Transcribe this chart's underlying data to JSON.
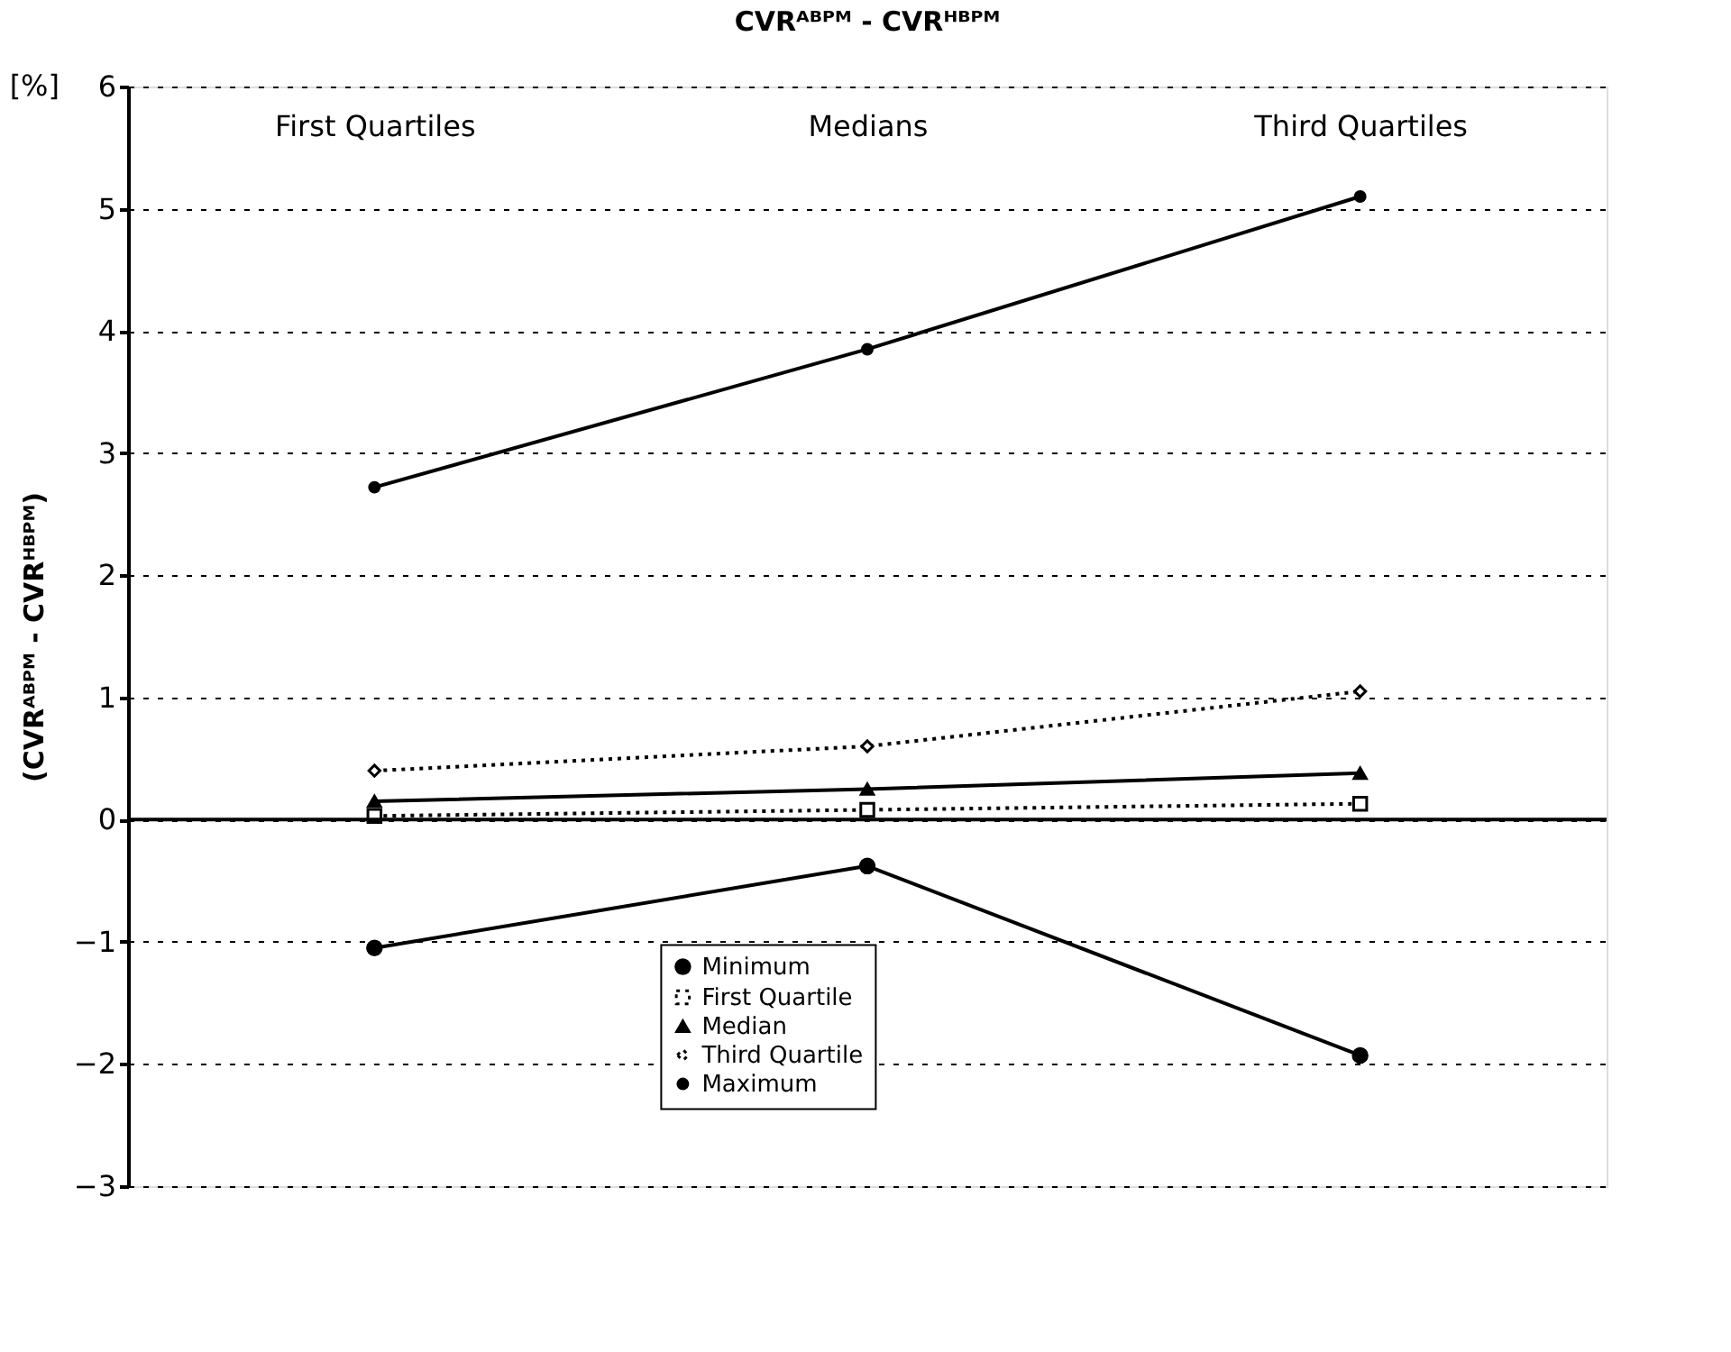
{
  "chart_data": {
    "type": "line",
    "title": "CVRᴬᴮᴾᴹ - CVRᴴᴮᴾᴹ",
    "ylabel": "(CVRᴬᴮᴾᴹ - CVRᴴᴮᴾᴹ)",
    "annotations": [
      "[%]"
    ],
    "categories": [
      "First Quartiles",
      "Medians",
      "Third Quartiles"
    ],
    "series": [
      {
        "name": "Minimum",
        "color": "#000000",
        "marker": "circle",
        "line_style": "solid",
        "values": [
          -1.05,
          -0.38,
          -1.93
        ]
      },
      {
        "name": "First Quartile",
        "color": "#000000",
        "marker": "square",
        "line_style": "dotted",
        "values": [
          0.03,
          0.08,
          0.13
        ]
      },
      {
        "name": "Median",
        "color": "#000000",
        "marker": "triangle",
        "line_style": "solid",
        "values": [
          0.15,
          0.25,
          0.38
        ]
      },
      {
        "name": "Third Quartile",
        "color": "#000000",
        "marker": "diamond",
        "line_style": "dotted",
        "values": [
          0.4,
          0.6,
          1.05
        ]
      },
      {
        "name": "Maximum",
        "color": "#000000",
        "marker": "circle",
        "line_style": "solid",
        "values": [
          2.72,
          3.85,
          5.1
        ]
      }
    ],
    "ylim": [
      -3,
      6
    ],
    "yticks": [
      -3,
      -2,
      -1,
      0,
      1,
      2,
      3,
      4,
      5,
      6
    ],
    "ref_lines": [
      {
        "axis": "y",
        "value": 0,
        "color": "#000000",
        "line_style": "solid"
      }
    ],
    "grid": "y",
    "legend": "bottom"
  }
}
